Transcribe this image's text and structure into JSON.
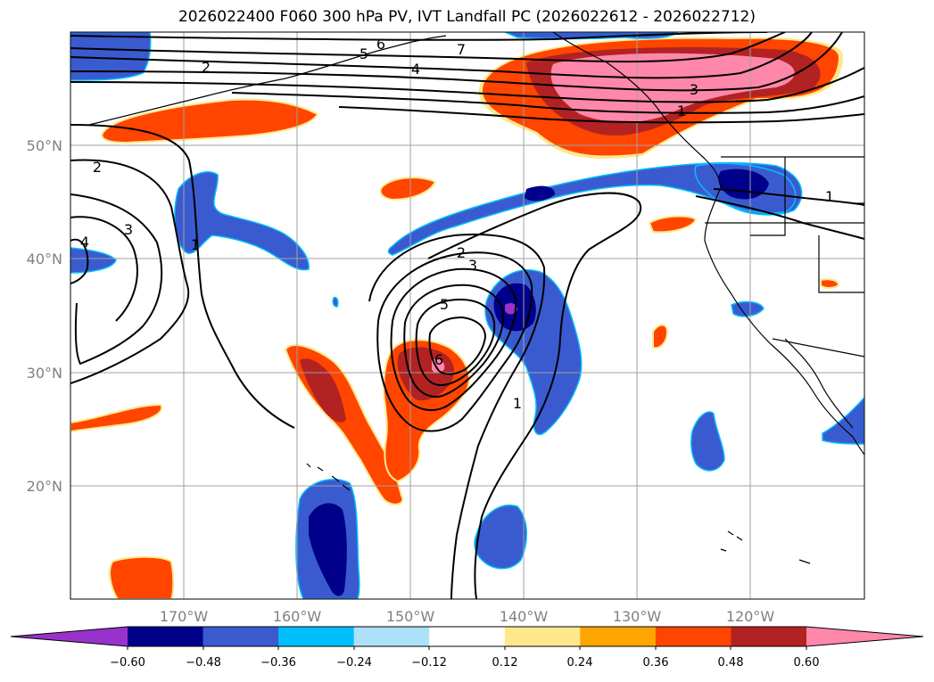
{
  "title": "2026022400 F060 300 hPa PV, IVT Landfall PC (2026022612 - 2026022712)",
  "map": {
    "lon_labels": [
      "170°W",
      "160°W",
      "150°W",
      "140°W",
      "130°W",
      "120°W"
    ],
    "lat_labels": [
      "50°N",
      "40°N",
      "30°N",
      "20°N"
    ],
    "contour_labels": [
      "2",
      "6",
      "5",
      "7",
      "4",
      "3",
      "1",
      "2",
      "3",
      "4",
      "1",
      "2",
      "3",
      "5",
      "6",
      "1",
      "1"
    ]
  },
  "colorbar": {
    "ticks": [
      "−0.60",
      "−0.48",
      "−0.36",
      "−0.24",
      "−0.12",
      "0.12",
      "0.24",
      "0.36",
      "0.48",
      "0.60"
    ],
    "colors": [
      "#9932CC",
      "#00008B",
      "#3A5BD0",
      "#00BFFF",
      "#ADE1F9",
      "#FFFFFF",
      "#FFE88C",
      "#FFA500",
      "#FF4500",
      "#B22222",
      "#FF88AA"
    ]
  }
}
